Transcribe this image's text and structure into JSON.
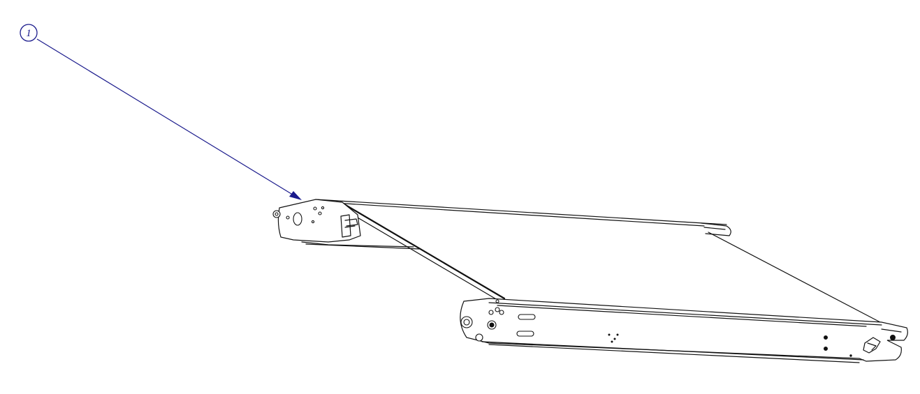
{
  "balloon": {
    "label": "1"
  },
  "colors": {
    "leader": "#1a1a8c",
    "line": "#111111",
    "background": "#ffffff"
  }
}
